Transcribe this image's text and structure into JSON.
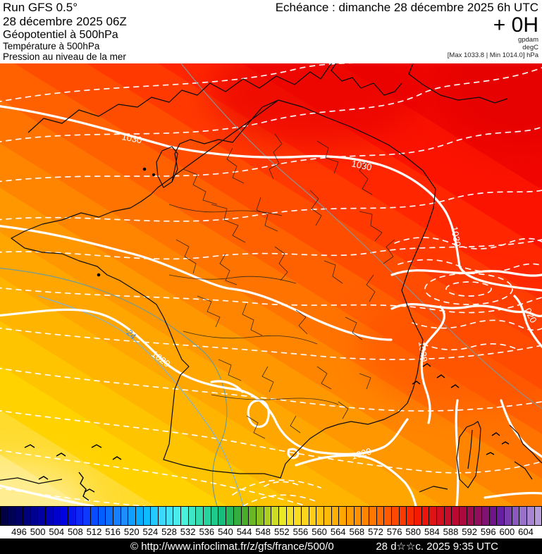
{
  "header": {
    "run_model": "Run GFS 0.5°",
    "run_date": "28 décembre 2025 06Z",
    "param_main": "Géopotentiel à 500hPa",
    "param_secondary": "Température à 500hPa",
    "param_tertiary": "Pression au niveau de la mer",
    "echeance": "Echéance : dimanche 28 décembre 2025 6h UTC",
    "step": "+ 0H",
    "unit_geopotential": "gpdam",
    "unit_temperature": "degC",
    "pressure_minmax": "[Max 1033.8 | Min 1014.0] hPa"
  },
  "map_labels": {
    "isobar_1030_west": "1030",
    "isobar_1030_center": "1030",
    "isobar_1030_east": "1030",
    "isobar_1020_southwest": "1020",
    "isobar_1020_med": "1020",
    "isobar_1020_alps": "1020",
    "isobar_1020_east_edge": "020",
    "isotherm_minus_24": "-24"
  },
  "colorbar": {
    "unit_values": [
      496,
      500,
      504,
      508,
      512,
      516,
      520,
      524,
      528,
      532,
      536,
      540,
      544,
      548,
      552,
      556,
      560,
      564,
      568,
      572,
      576,
      580,
      584,
      588,
      592,
      596,
      600,
      604
    ],
    "colors": [
      "#000042",
      "#000073",
      "#0000a8",
      "#0000e0",
      "#1030ff",
      "#0061ff",
      "#1e8cff",
      "#00b2ff",
      "#3cd9ff",
      "#4df3e3",
      "#2fd9a8",
      "#14c07d",
      "#3aaa2d",
      "#8fc21e",
      "#e8e828",
      "#ffd820",
      "#ffc30f",
      "#ffa800",
      "#ff8d00",
      "#ff6a00",
      "#ff3f00",
      "#f51800",
      "#d40f1e",
      "#b30837",
      "#8e0f5c",
      "#64189b",
      "#8f64c3",
      "#b79ad8"
    ]
  },
  "footer": {
    "copyright": "© http://www.infoclimat.fr/z/gfs/france/500/0",
    "generated": "28 d☆☆c. 2025  9:35 UTC"
  }
}
